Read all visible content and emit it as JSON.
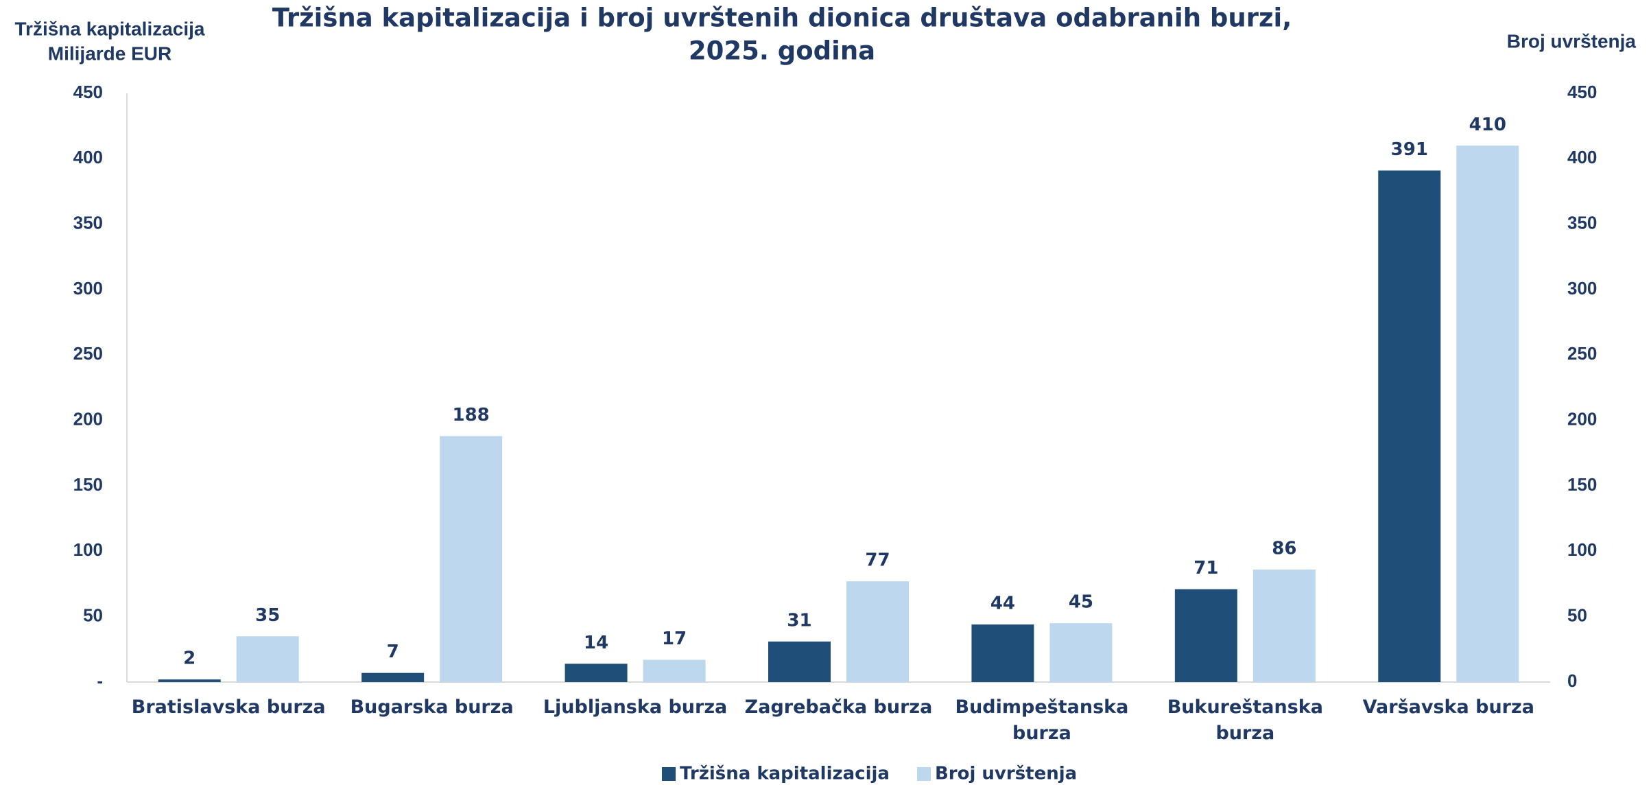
{
  "chart_data": {
    "type": "bar",
    "title": [
      "Tržišna kapitalizacija i broj uvrštenih dionica društava odabranih burzi,",
      "2025. godina"
    ],
    "y_label": [
      "Tržišna kapitalizacija",
      "Milijarde EUR"
    ],
    "y2_label": "Broj uvrštenja",
    "categories": [
      "Bratislavska burza",
      "Bugarska burza",
      "Ljubljanska burza",
      "Zagrebačka burza",
      "Budimpeštanska burza",
      "Bukureštanska burza",
      "Varšavska burza"
    ],
    "series": [
      {
        "name": "Tržišna kapitalizacija",
        "color": "#1f4e79",
        "values": [
          2,
          7,
          14,
          31,
          44,
          71,
          391
        ],
        "axis": "y"
      },
      {
        "name": "Broj uvrštenja",
        "color": "#bdd7ee",
        "values": [
          35,
          188,
          17,
          77,
          45,
          86,
          410
        ],
        "axis": "y2"
      }
    ],
    "ylim": [
      0,
      450
    ],
    "yticks": [
      {
        "value": 0,
        "label": "-"
      },
      50,
      100,
      150,
      200,
      250,
      300,
      350,
      400,
      450
    ],
    "y2lim": [
      0,
      450
    ],
    "y2ticks": [
      0,
      50,
      100,
      150,
      200,
      250,
      300,
      350,
      400,
      450
    ],
    "legend": "bottom"
  }
}
